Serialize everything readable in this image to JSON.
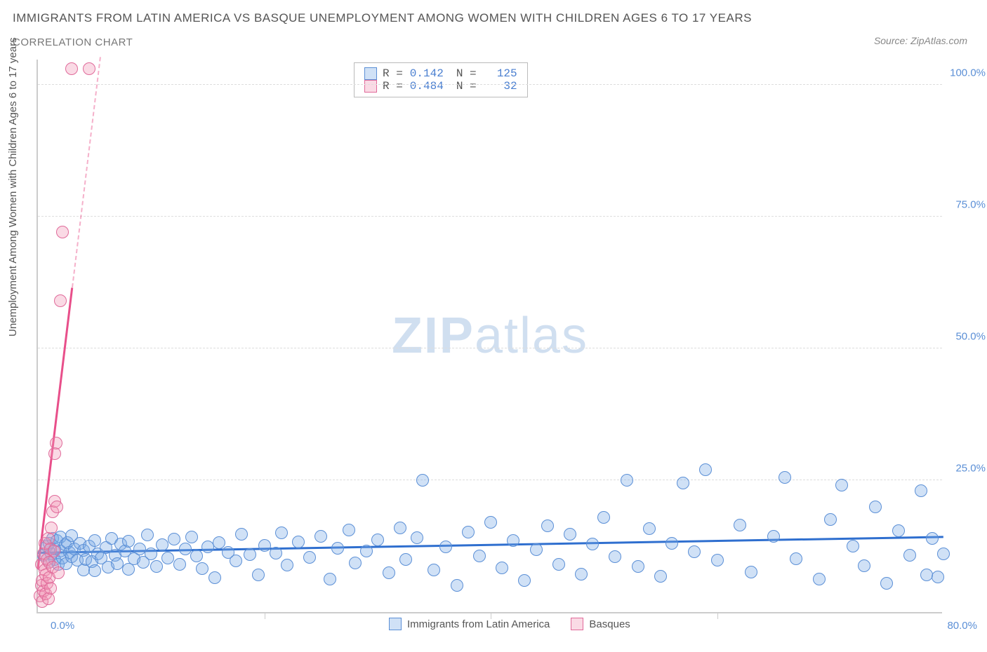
{
  "title": "IMMIGRANTS FROM LATIN AMERICA VS BASQUE UNEMPLOYMENT AMONG WOMEN WITH CHILDREN AGES 6 TO 17 YEARS",
  "subtitle": "CORRELATION CHART",
  "source": "Source: ZipAtlas.com",
  "ylabel": "Unemployment Among Women with Children Ages 6 to 17 years",
  "watermark": {
    "bold": "ZIP",
    "rest": "atlas"
  },
  "chart": {
    "type": "scatter",
    "xlim": [
      0,
      80
    ],
    "ylim": [
      0,
      105
    ],
    "xticks": [
      0,
      20,
      40,
      60,
      80
    ],
    "yticks": [
      25,
      50,
      75,
      100
    ],
    "xlabel_min": "0.0%",
    "xlabel_max": "80.0%",
    "ytick_labels": [
      "25.0%",
      "50.0%",
      "75.0%",
      "100.0%"
    ],
    "background_color": "#ffffff",
    "grid_color": "#dddddd",
    "axis_color": "#cccccc",
    "tick_font_color": "#5b8fd6",
    "point_radius": 9,
    "series": [
      {
        "name": "Immigrants from Latin America",
        "color_fill": "rgba(120,170,230,0.35)",
        "color_stroke": "#5b8fd6",
        "r_value": "0.142",
        "n_value": "125",
        "trend": {
          "x1": 0,
          "y1": 11.0,
          "x2": 80,
          "y2": 14.0,
          "color": "#2f6fcf"
        },
        "points": [
          [
            0.5,
            10.8
          ],
          [
            0.8,
            12.5
          ],
          [
            1.0,
            9.5
          ],
          [
            1.0,
            13.0
          ],
          [
            1.2,
            11.0
          ],
          [
            1.3,
            14.0
          ],
          [
            1.5,
            10.0
          ],
          [
            1.5,
            12.0
          ],
          [
            1.7,
            13.5
          ],
          [
            1.8,
            9.0
          ],
          [
            2.0,
            11.5
          ],
          [
            2.0,
            14.2
          ],
          [
            2.2,
            10.2
          ],
          [
            2.4,
            12.8
          ],
          [
            2.5,
            9.2
          ],
          [
            2.6,
            13.2
          ],
          [
            2.8,
            11.3
          ],
          [
            3.0,
            10.5
          ],
          [
            3.0,
            14.5
          ],
          [
            3.2,
            12.0
          ],
          [
            3.5,
            9.8
          ],
          [
            3.7,
            13.0
          ],
          [
            4.0,
            8.0
          ],
          [
            4.0,
            11.7
          ],
          [
            4.2,
            10.0
          ],
          [
            4.5,
            12.5
          ],
          [
            4.8,
            9.6
          ],
          [
            5.0,
            13.6
          ],
          [
            5.0,
            7.8
          ],
          [
            5.3,
            11.0
          ],
          [
            5.6,
            10.3
          ],
          [
            6.0,
            12.2
          ],
          [
            6.2,
            8.5
          ],
          [
            6.5,
            14.0
          ],
          [
            6.8,
            10.8
          ],
          [
            7.0,
            9.2
          ],
          [
            7.3,
            12.9
          ],
          [
            7.7,
            11.5
          ],
          [
            8.0,
            8.1
          ],
          [
            8.0,
            13.4
          ],
          [
            8.5,
            10.1
          ],
          [
            9.0,
            12.0
          ],
          [
            9.3,
            9.4
          ],
          [
            9.7,
            14.6
          ],
          [
            10.0,
            11.0
          ],
          [
            10.5,
            8.6
          ],
          [
            11.0,
            12.7
          ],
          [
            11.5,
            10.2
          ],
          [
            12.0,
            13.8
          ],
          [
            12.5,
            9.0
          ],
          [
            13.0,
            11.9
          ],
          [
            13.6,
            14.2
          ],
          [
            14.0,
            10.6
          ],
          [
            14.5,
            8.3
          ],
          [
            15.0,
            12.4
          ],
          [
            15.6,
            6.5
          ],
          [
            16.0,
            13.1
          ],
          [
            16.8,
            11.3
          ],
          [
            17.5,
            9.7
          ],
          [
            18.0,
            14.8
          ],
          [
            18.7,
            10.9
          ],
          [
            19.5,
            7.0
          ],
          [
            20.0,
            12.6
          ],
          [
            21.0,
            11.2
          ],
          [
            21.5,
            15.0
          ],
          [
            22.0,
            8.9
          ],
          [
            23.0,
            13.3
          ],
          [
            24.0,
            10.4
          ],
          [
            25.0,
            14.4
          ],
          [
            25.8,
            6.2
          ],
          [
            26.5,
            12.1
          ],
          [
            27.5,
            15.5
          ],
          [
            28.0,
            9.3
          ],
          [
            29.0,
            11.6
          ],
          [
            30.0,
            13.7
          ],
          [
            31.0,
            7.4
          ],
          [
            32.0,
            16.0
          ],
          [
            32.5,
            10.0
          ],
          [
            33.5,
            14.1
          ],
          [
            34.0,
            25.0
          ],
          [
            35.0,
            8.0
          ],
          [
            36.0,
            12.3
          ],
          [
            37.0,
            5.0
          ],
          [
            38.0,
            15.2
          ],
          [
            39.0,
            10.7
          ],
          [
            40.0,
            17.0
          ],
          [
            41.0,
            8.4
          ],
          [
            42.0,
            13.5
          ],
          [
            43.0,
            6.0
          ],
          [
            44.0,
            11.8
          ],
          [
            45.0,
            16.3
          ],
          [
            46.0,
            9.1
          ],
          [
            47.0,
            14.7
          ],
          [
            48.0,
            7.2
          ],
          [
            49.0,
            12.9
          ],
          [
            50.0,
            18.0
          ],
          [
            51.0,
            10.5
          ],
          [
            52.0,
            25.0
          ],
          [
            53.0,
            8.7
          ],
          [
            54.0,
            15.8
          ],
          [
            55.0,
            6.8
          ],
          [
            56.0,
            13.0
          ],
          [
            57.0,
            24.5
          ],
          [
            58.0,
            11.4
          ],
          [
            59.0,
            27.0
          ],
          [
            60.0,
            9.9
          ],
          [
            62.0,
            16.5
          ],
          [
            63.0,
            7.6
          ],
          [
            65.0,
            14.3
          ],
          [
            66.0,
            25.5
          ],
          [
            67.0,
            10.1
          ],
          [
            69.0,
            6.3
          ],
          [
            70.0,
            17.5
          ],
          [
            71.0,
            24.0
          ],
          [
            72.0,
            12.5
          ],
          [
            73.0,
            8.8
          ],
          [
            74.0,
            20.0
          ],
          [
            75.0,
            5.5
          ],
          [
            76.0,
            15.4
          ],
          [
            77.0,
            10.8
          ],
          [
            78.0,
            23.0
          ],
          [
            78.5,
            7.1
          ],
          [
            79.0,
            13.9
          ],
          [
            79.5,
            6.6
          ],
          [
            80.0,
            11.1
          ]
        ]
      },
      {
        "name": "Basques",
        "color_fill": "rgba(240,150,180,0.35)",
        "color_stroke": "#e06a9a",
        "r_value": "0.484",
        "n_value": "32",
        "trend": {
          "x1": 0,
          "y1": 8.0,
          "x2": 5.5,
          "y2": 105.0,
          "color": "#e84f8a",
          "dash_extend": true
        },
        "points": [
          [
            0.2,
            3.0
          ],
          [
            0.3,
            5.0
          ],
          [
            0.3,
            9.0
          ],
          [
            0.4,
            2.0
          ],
          [
            0.4,
            6.0
          ],
          [
            0.5,
            11.0
          ],
          [
            0.5,
            4.0
          ],
          [
            0.6,
            8.0
          ],
          [
            0.6,
            13.0
          ],
          [
            0.7,
            3.5
          ],
          [
            0.7,
            7.0
          ],
          [
            0.8,
            10.0
          ],
          [
            0.8,
            5.5
          ],
          [
            0.9,
            14.0
          ],
          [
            0.9,
            2.5
          ],
          [
            1.0,
            9.5
          ],
          [
            1.0,
            6.5
          ],
          [
            1.1,
            12.0
          ],
          [
            1.1,
            4.5
          ],
          [
            1.2,
            16.0
          ],
          [
            1.3,
            8.5
          ],
          [
            1.3,
            19.0
          ],
          [
            1.4,
            11.5
          ],
          [
            1.5,
            21.0
          ],
          [
            1.5,
            30.0
          ],
          [
            1.6,
            32.0
          ],
          [
            1.7,
            20.0
          ],
          [
            1.8,
            7.5
          ],
          [
            2.0,
            59.0
          ],
          [
            2.2,
            72.0
          ],
          [
            3.0,
            103.0
          ],
          [
            4.5,
            103.0
          ]
        ]
      }
    ]
  },
  "stats_labels": {
    "R": "R =",
    "N": "N ="
  },
  "legend_labels": [
    "Immigrants from Latin America",
    "Basques"
  ]
}
